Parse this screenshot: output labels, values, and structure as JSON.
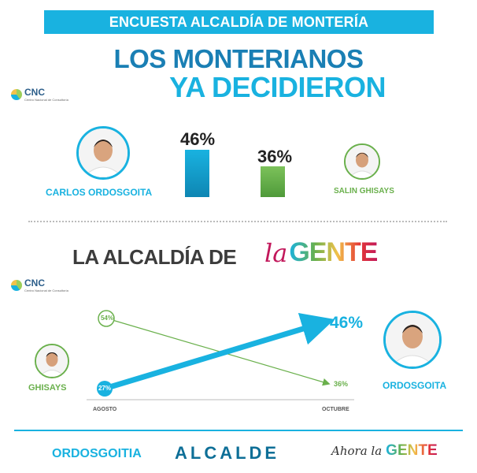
{
  "banner": {
    "title": "ENCUESTA ALCALDÍA DE MONTERÍA"
  },
  "headline": {
    "line1": "LOS MONTERIANOS",
    "line2": "YA DECIDIERON"
  },
  "pollster": {
    "name": "CNC",
    "subtitle": "Centro Nacional de Consultoría"
  },
  "candidates": {
    "ordosgoita": {
      "full_name": "CARLOS ORDOSGOITA",
      "short_name": "ORDOSGOITA",
      "percent": "46%",
      "color": "#19b2e0"
    },
    "ghisays": {
      "full_name": "SALIN GHISAYS",
      "short_name": "GHISAYS",
      "percent": "36%",
      "color": "#6ab04c"
    }
  },
  "campaign": {
    "title": "LA ALCALDÍA DE",
    "brand_la": "la",
    "brand_gente": "GENTE"
  },
  "trend": {
    "months": [
      "AGOSTO",
      "OCTUBRE"
    ],
    "ordosgoita": {
      "start": "27%",
      "end": "46%"
    },
    "ghisays": {
      "start": "54%",
      "end": "36%"
    }
  },
  "footer": {
    "left": "ORDOSGOITIA",
    "center": "ALCALDE",
    "right_prefix": "Ahora la",
    "right_brand": "GENTE"
  },
  "colors": {
    "accent": "#19b2e0",
    "dark_blue": "#1a7fb4",
    "green": "#6ab04c"
  }
}
